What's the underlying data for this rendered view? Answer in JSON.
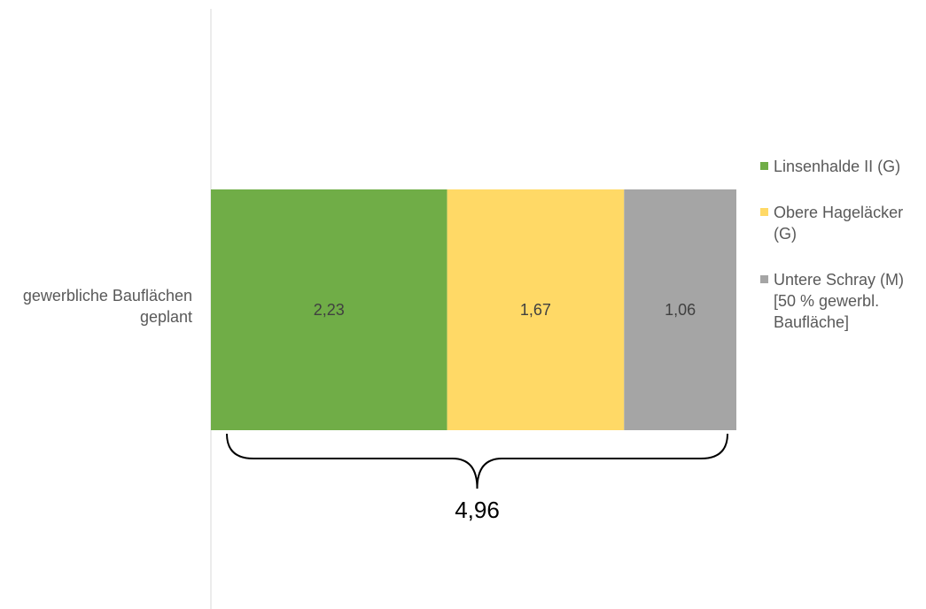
{
  "chart_data": {
    "type": "bar",
    "orientation": "horizontal",
    "stacked": true,
    "categories": [
      "gewerbliche Bauflächen geplant"
    ],
    "series": [
      {
        "name": "Linsenhalde II (G)",
        "values": [
          2.23
        ],
        "label": "2,23",
        "color": "#70ad47"
      },
      {
        "name": "Obere Hageläcker (G)",
        "values": [
          1.67
        ],
        "label": "1,67",
        "color": "#ffd966"
      },
      {
        "name": "Untere Schray (M) [50 % gewerbl. Baufläche]",
        "values": [
          1.06
        ],
        "label": "1,06",
        "color": "#a5a5a5"
      }
    ],
    "total": {
      "value": 4.96,
      "label": "4,96"
    },
    "xlim": [
      0,
      4.96
    ],
    "grid": false,
    "legend": "right"
  }
}
